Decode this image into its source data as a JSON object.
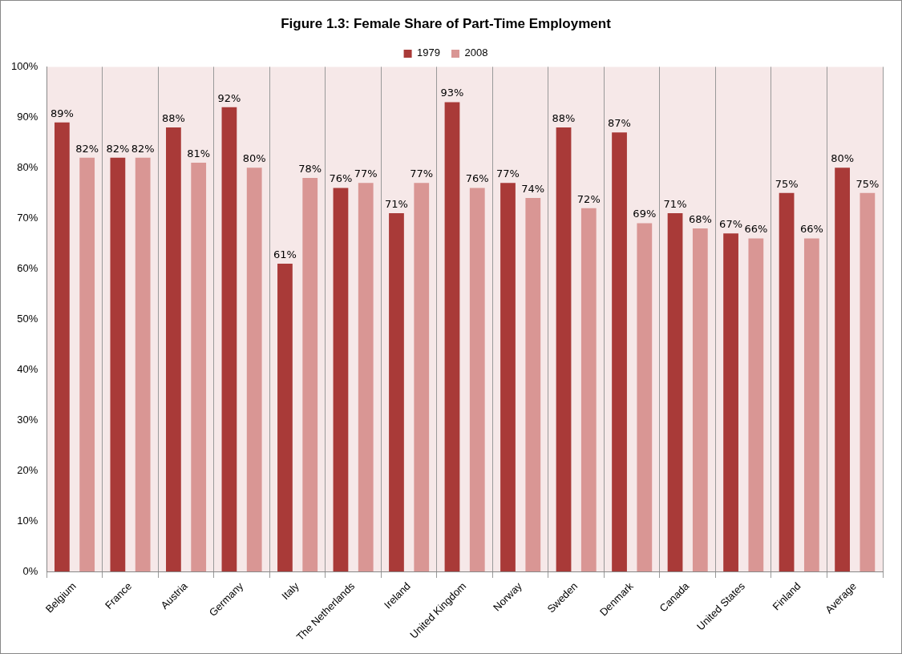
{
  "chart_data": {
    "type": "bar",
    "title": "Figure 1.3: Female Share of Part-Time Employment",
    "categories": [
      "Belgium",
      "France",
      "Austria",
      "Germany",
      "Italy",
      "The Netherlands",
      "Ireland",
      "United Kingdom",
      "Norway",
      "Sweden",
      "Denmark",
      "Canada",
      "United States",
      "Finland",
      "Average"
    ],
    "series": [
      {
        "name": "1979",
        "color": "#a93a38",
        "values": [
          89,
          82,
          88,
          92,
          61,
          76,
          71,
          93,
          77,
          88,
          87,
          71,
          67,
          75,
          80
        ],
        "value_labels": [
          "89%",
          "82%",
          "88%",
          "92%",
          "61%",
          "76%",
          "71%",
          "93%",
          "77%",
          "88%",
          "87%",
          "71%",
          "67%",
          "75%",
          "80%"
        ]
      },
      {
        "name": "2008",
        "color": "#d99694",
        "values": [
          82,
          82,
          81,
          80,
          78,
          77,
          77,
          76,
          74,
          72,
          69,
          68,
          66,
          66,
          75
        ],
        "value_labels": [
          "82%",
          "82%",
          "81%",
          "80%",
          "78%",
          "77%",
          "77%",
          "76%",
          "74%",
          "72%",
          "69%",
          "68%",
          "66%",
          "66%",
          "75%"
        ]
      }
    ],
    "ylim": [
      0,
      100
    ],
    "yticks": [
      {
        "value": 0,
        "label": "0%"
      },
      {
        "value": 10,
        "label": "10%"
      },
      {
        "value": 20,
        "label": "20%"
      },
      {
        "value": 30,
        "label": "30%"
      },
      {
        "value": 40,
        "label": "40%"
      },
      {
        "value": 50,
        "label": "50%"
      },
      {
        "value": 60,
        "label": "60%"
      },
      {
        "value": 70,
        "label": "70%"
      },
      {
        "value": 80,
        "label": "80%"
      },
      {
        "value": 90,
        "label": "90%"
      },
      {
        "value": 100,
        "label": "100%"
      }
    ],
    "grid": "x",
    "legend": "top"
  }
}
